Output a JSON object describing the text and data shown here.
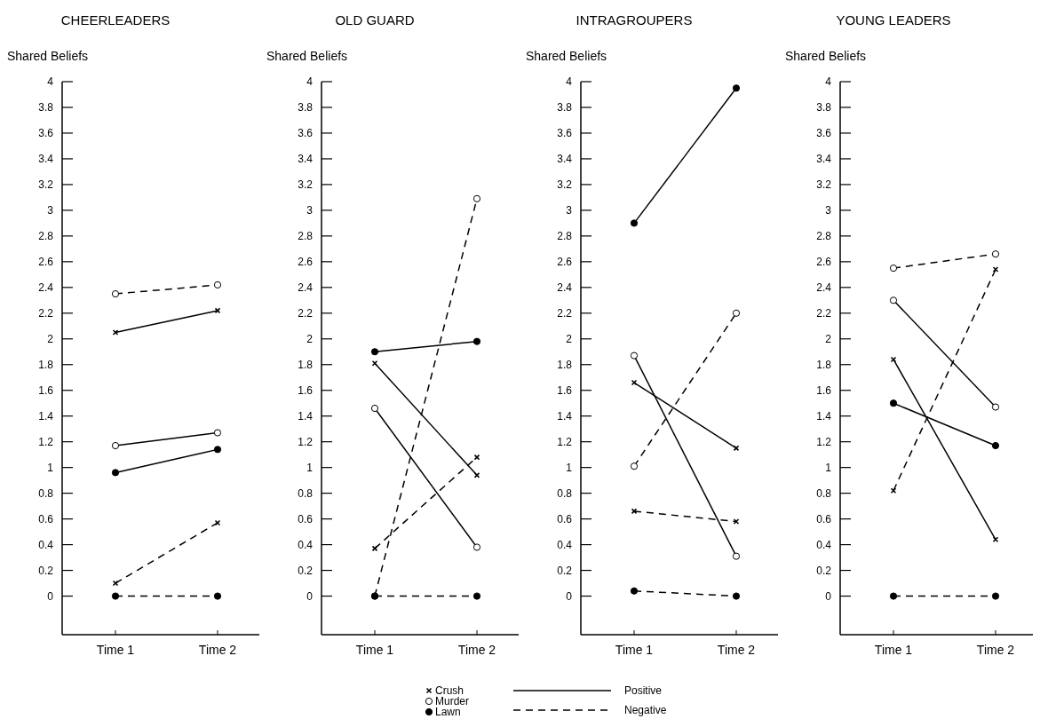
{
  "chart_data": [
    {
      "type": "line",
      "title": "CHEERLEADERS",
      "ylabel": "Shared Beliefs",
      "categories": [
        "Time 1",
        "Time 2"
      ],
      "ylim": [
        -0.3,
        4
      ],
      "yticks": [
        0,
        0.2,
        0.4,
        0.6,
        0.8,
        1,
        1.2,
        1.4,
        1.6,
        1.8,
        2,
        2.2,
        2.4,
        2.6,
        2.8,
        3,
        3.2,
        3.4,
        3.6,
        3.8,
        4
      ],
      "legend": "bottom",
      "annotations": [
        "Positive",
        "Negative"
      ],
      "series": [
        {
          "name": "Crush",
          "color": "#000000",
          "marker": "cross",
          "line_style": "solid",
          "values": [
            2.05,
            2.22
          ]
        },
        {
          "color": "#000000",
          "marker": "cross",
          "line_style": "dashed",
          "values": [
            0.1,
            0.57
          ]
        },
        {
          "name": "Murder",
          "color": "#000000",
          "colors": [
            "#ffffff",
            "#ffffff"
          ],
          "marker": "circle",
          "line_style": "solid",
          "values": [
            1.17,
            1.27
          ]
        },
        {
          "color": "#000000",
          "colors": [
            "#ffffff",
            "#ffffff"
          ],
          "marker": "circle",
          "line_style": "dashed",
          "values": [
            2.35,
            2.42
          ]
        },
        {
          "name": "Lawn",
          "color": "#000000",
          "marker": "circle",
          "line_style": "solid",
          "values": [
            0.96,
            1.14
          ]
        },
        {
          "color": "#000000",
          "marker": "circle",
          "line_style": "dashed",
          "values": [
            0,
            0
          ]
        }
      ]
    },
    {
      "type": "line",
      "title": "OLD GUARD",
      "ylabel": "Shared Beliefs",
      "categories": [
        "Time 1",
        "Time 2"
      ],
      "ylim": [
        -0.3,
        4
      ],
      "yticks": [
        0,
        0.2,
        0.4,
        0.6,
        0.8,
        1,
        1.2,
        1.4,
        1.6,
        1.8,
        2,
        2.2,
        2.4,
        2.6,
        2.8,
        3,
        3.2,
        3.4,
        3.6,
        3.8,
        4
      ],
      "series": [
        {
          "color": "#000000",
          "marker": "cross",
          "line_style": "solid",
          "values": [
            1.81,
            0.94
          ]
        },
        {
          "color": "#000000",
          "marker": "cross",
          "line_style": "dashed",
          "values": [
            0.37,
            1.08
          ]
        },
        {
          "color": "#000000",
          "colors": [
            "#ffffff",
            "#ffffff"
          ],
          "marker": "circle",
          "line_style": "solid",
          "values": [
            1.46,
            0.38
          ]
        },
        {
          "color": "#000000",
          "colors": [
            "#ffffff",
            "#ffffff"
          ],
          "marker": "circle",
          "line_style": "dashed",
          "values": [
            0,
            3.09
          ]
        },
        {
          "color": "#000000",
          "marker": "circle",
          "line_style": "solid",
          "values": [
            1.9,
            1.98
          ]
        },
        {
          "color": "#000000",
          "marker": "circle",
          "line_style": "dashed",
          "values": [
            0,
            0
          ]
        }
      ]
    },
    {
      "type": "line",
      "title": "INTRAGROUPERS",
      "ylabel": "Shared Beliefs",
      "categories": [
        "Time 1",
        "Time 2"
      ],
      "ylim": [
        -0.3,
        4
      ],
      "yticks": [
        0,
        0.2,
        0.4,
        0.6,
        0.8,
        1,
        1.2,
        1.4,
        1.6,
        1.8,
        2,
        2.2,
        2.4,
        2.6,
        2.8,
        3,
        3.2,
        3.4,
        3.6,
        3.8,
        4
      ],
      "series": [
        {
          "color": "#000000",
          "marker": "cross",
          "line_style": "solid",
          "values": [
            1.66,
            1.15
          ]
        },
        {
          "color": "#000000",
          "marker": "cross",
          "line_style": "dashed",
          "values": [
            0.66,
            0.58
          ]
        },
        {
          "color": "#000000",
          "colors": [
            "#ffffff",
            "#ffffff"
          ],
          "marker": "circle",
          "line_style": "solid",
          "values": [
            1.87,
            0.31
          ]
        },
        {
          "color": "#000000",
          "colors": [
            "#ffffff",
            "#ffffff"
          ],
          "marker": "circle",
          "line_style": "dashed",
          "values": [
            1.01,
            2.2
          ]
        },
        {
          "color": "#000000",
          "marker": "circle",
          "line_style": "solid",
          "values": [
            2.9,
            3.95
          ]
        },
        {
          "color": "#000000",
          "marker": "circle",
          "line_style": "dashed",
          "values": [
            0.04,
            0
          ]
        }
      ]
    },
    {
      "type": "line",
      "title": "YOUNG LEADERS",
      "ylabel": "Shared Beliefs",
      "categories": [
        "Time 1",
        "Time 2"
      ],
      "ylim": [
        -0.3,
        4
      ],
      "yticks": [
        0,
        0.2,
        0.4,
        0.6,
        0.8,
        1,
        1.2,
        1.4,
        1.6,
        1.8,
        2,
        2.2,
        2.4,
        2.6,
        2.8,
        3,
        3.2,
        3.4,
        3.6,
        3.8,
        4
      ],
      "series": [
        {
          "color": "#000000",
          "marker": "cross",
          "line_style": "solid",
          "values": [
            1.84,
            0.44
          ]
        },
        {
          "color": "#000000",
          "marker": "cross",
          "line_style": "dashed",
          "values": [
            0.82,
            2.54
          ]
        },
        {
          "color": "#000000",
          "colors": [
            "#ffffff",
            "#ffffff"
          ],
          "marker": "circle",
          "line_style": "solid",
          "values": [
            2.3,
            1.47
          ]
        },
        {
          "color": "#000000",
          "colors": [
            "#ffffff",
            "#ffffff"
          ],
          "marker": "circle",
          "line_style": "dashed",
          "values": [
            2.55,
            2.66
          ]
        },
        {
          "color": "#000000",
          "marker": "circle",
          "line_style": "solid",
          "values": [
            1.5,
            1.17
          ]
        },
        {
          "color": "#000000",
          "marker": "circle",
          "line_style": "dashed",
          "values": [
            0,
            0
          ]
        }
      ]
    }
  ]
}
